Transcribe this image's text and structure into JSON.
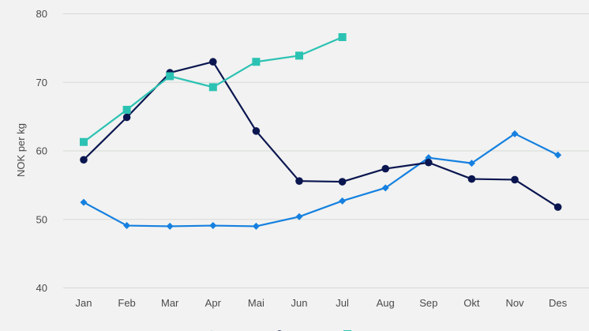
{
  "chart_data": {
    "type": "line",
    "title": "",
    "xlabel": "",
    "ylabel": "NOK per kg",
    "ylim": [
      40,
      80
    ],
    "yticks": [
      40,
      50,
      60,
      70,
      80
    ],
    "grid": true,
    "legend_position": "bottom",
    "categories": [
      "Jan",
      "Feb",
      "Mar",
      "Apr",
      "Mai",
      "Jun",
      "Jul",
      "Aug",
      "Sep",
      "Okt",
      "Nov",
      "Des"
    ],
    "series": [
      {
        "name": "",
        "color": "#1580e0",
        "marker": "diamond",
        "values": [
          52.5,
          49.1,
          49.0,
          49.1,
          49.0,
          50.4,
          52.7,
          54.6,
          59.0,
          58.2,
          62.5,
          59.4
        ]
      },
      {
        "name": "",
        "color": "#0b1650",
        "marker": "circle",
        "values": [
          58.7,
          64.9,
          71.4,
          73.0,
          62.9,
          55.6,
          55.5,
          57.4,
          58.3,
          55.9,
          55.8,
          51.8
        ]
      },
      {
        "name": "",
        "color": "#2cc2b3",
        "marker": "square",
        "values": [
          61.3,
          66.0,
          70.9,
          69.3,
          73.0,
          73.9,
          76.6,
          null,
          null,
          null,
          null,
          null
        ]
      }
    ]
  }
}
